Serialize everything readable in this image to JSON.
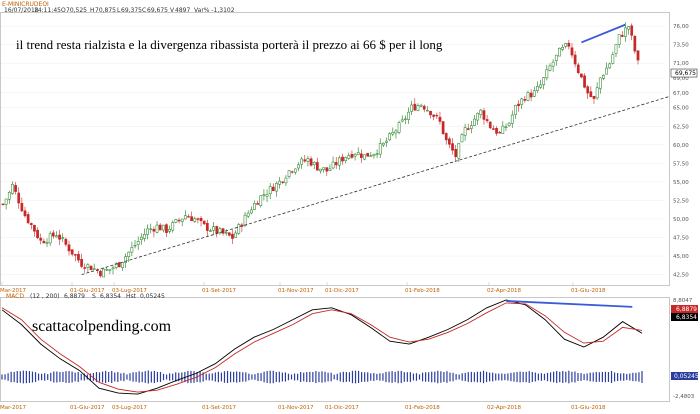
{
  "header": {
    "symbol": "E-MINICRUDEOI",
    "date": "16/07/2018",
    "time": "14:11:45",
    "open": "70,525",
    "high": "70,875",
    "low": "69,375",
    "close": "69,675",
    "volume": "4897",
    "var": "Var% -1,3102"
  },
  "annotation": "il trend resta rialzista e la divergenza ribassista porterà il prezzo ai 66 $ per il long",
  "brand": "scattacolpending.com",
  "price_badge": "69,675",
  "macd_header": {
    "name": "MACD",
    "params": "(12 , 200)",
    "v1": "6,8879",
    "label2": "S",
    "v2": "6,8354",
    "label3": "Hst",
    "v3": "0,05245"
  },
  "macd_badges": [
    "6,8879",
    "6,8354"
  ],
  "macd_hist_badge": "0,05245",
  "colors": {
    "up": "#1a7a1a",
    "down": "#c62828",
    "macd": "#000000",
    "signal": "#c62828",
    "hist": "#2b3d9e",
    "divergence": "#3a5bd9",
    "ticks": "#c06000"
  },
  "chart_data": [
    {
      "type": "candlestick",
      "title": "E-MINICRUDEOI",
      "x_labels": [
        "Mar-2017",
        "01-Giu-2017",
        "03-Lug-2017",
        "01-Set-2017",
        "01-Nov-2017",
        "01-Dic-2017",
        "01-Feb-2018",
        "02-Apr-2018",
        "01-Giu-2018"
      ],
      "y_ticks": [
        "76,00",
        "73,50",
        "71,00",
        "69,00",
        "67,00",
        "65,00",
        "62,50",
        "60,00",
        "57,50",
        "55,00",
        "52,50",
        "50,00",
        "47,50",
        "45,00",
        "42,50"
      ],
      "ylim": [
        41.5,
        77.5
      ],
      "close_path": {
        "x": [
          0,
          2,
          3,
          5,
          7,
          10,
          12,
          15,
          17,
          20,
          22,
          25,
          28,
          31,
          34,
          37,
          40,
          43,
          46,
          49,
          52,
          55,
          58,
          61,
          64,
          67,
          70,
          73,
          76,
          79,
          82,
          85,
          88,
          91,
          94,
          97,
          100,
          103,
          106,
          109,
          112,
          115,
          118,
          121,
          124,
          127,
          130,
          133,
          136,
          139,
          141,
          144,
          147,
          150,
          152,
          155,
          158,
          161,
          163,
          166,
          169,
          171,
          174,
          177,
          180,
          183,
          186,
          188,
          190,
          193,
          196,
          199,
          202
        ],
        "y": [
          52.0,
          53.5,
          54.5,
          52.5,
          50.5,
          48.5,
          47.0,
          47.5,
          48.0,
          46.5,
          45.5,
          44.0,
          43.5,
          42.8,
          43.2,
          44.0,
          45.5,
          47.0,
          48.5,
          49.0,
          48.5,
          49.5,
          50.5,
          50.0,
          49.0,
          48.5,
          48.0,
          47.5,
          49.5,
          51.5,
          53.0,
          54.0,
          55.0,
          56.5,
          57.5,
          58.0,
          57.0,
          56.5,
          57.5,
          58.5,
          59.0,
          58.5,
          59.0,
          60.0,
          61.5,
          63.0,
          65.0,
          65.5,
          64.5,
          63.0,
          60.5,
          58.5,
          62.0,
          63.5,
          64.5,
          62.5,
          61.5,
          63.0,
          65.0,
          66.5,
          67.0,
          68.0,
          70.5,
          72.5,
          73.5,
          70.0,
          67.0,
          66.0,
          69.0,
          71.0,
          74.5,
          76.0,
          71.0
        ]
      },
      "divergence_price": {
        "from": 73.8,
        "to": 76.2
      },
      "trendline_price": {
        "from": 42.5,
        "to": 66.5
      },
      "last_price": 69.675
    },
    {
      "type": "line",
      "title": "MACD (12 , 200)",
      "series": [
        {
          "name": "MACD",
          "values": [
            0.9,
            0.75,
            0.55,
            0.4,
            0.28,
            0.1,
            0.05,
            0.04,
            0.1,
            0.18,
            0.25,
            0.35,
            0.5,
            0.62,
            0.7,
            0.8,
            0.9,
            0.92,
            0.85,
            0.72,
            0.58,
            0.55,
            0.62,
            0.7,
            0.8,
            0.92,
            1.0,
            0.95,
            0.8,
            0.6,
            0.52,
            0.62,
            0.78,
            0.66
          ]
        },
        {
          "name": "S",
          "values": [
            0.92,
            0.8,
            0.6,
            0.45,
            0.32,
            0.16,
            0.09,
            0.06,
            0.08,
            0.14,
            0.21,
            0.31,
            0.45,
            0.57,
            0.66,
            0.75,
            0.86,
            0.9,
            0.86,
            0.75,
            0.62,
            0.57,
            0.6,
            0.67,
            0.76,
            0.87,
            0.97,
            0.96,
            0.84,
            0.67,
            0.56,
            0.58,
            0.72,
            0.69
          ]
        }
      ],
      "divergence": {
        "from": 0.99,
        "to": 0.93
      },
      "y_ticks": [
        "8,8047",
        "-2,4803"
      ],
      "last_values": [
        6.8879,
        6.8354
      ],
      "histogram_last": 0.05245
    }
  ]
}
